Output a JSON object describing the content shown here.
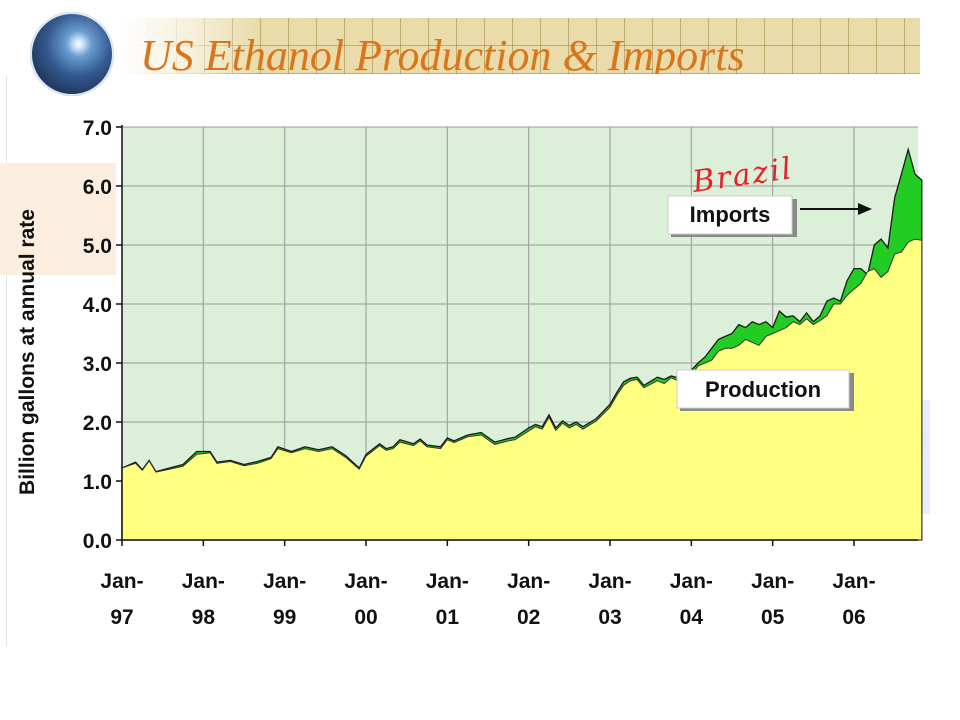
{
  "slide": {
    "title": "US Ethanol Production & Imports"
  },
  "chart_data": {
    "type": "area",
    "ylabel": "Billion gallons at annual rate",
    "ylim": [
      0,
      7
    ],
    "y_ticks": [
      0,
      1,
      2,
      3,
      4,
      5,
      6,
      7
    ],
    "y_tick_labels": [
      "0.0",
      "1.0",
      "2.0",
      "3.0",
      "4.0",
      "5.0",
      "6.0",
      "7.0"
    ],
    "x_start": "Jan-97",
    "x_ticks": [
      {
        "line1": "Jan-",
        "line2": "97",
        "month": 0
      },
      {
        "line1": "Jan-",
        "line2": "98",
        "month": 12
      },
      {
        "line1": "Jan-",
        "line2": "99",
        "month": 24
      },
      {
        "line1": "Jan-",
        "line2": "00",
        "month": 36
      },
      {
        "line1": "Jan-",
        "line2": "01",
        "month": 48
      },
      {
        "line1": "Jan-",
        "line2": "02",
        "month": 60
      },
      {
        "line1": "Jan-",
        "line2": "03",
        "month": 72
      },
      {
        "line1": "Jan-",
        "line2": "04",
        "month": 84
      },
      {
        "line1": "Jan-",
        "line2": "05",
        "month": 96
      },
      {
        "line1": "Jan-",
        "line2": "06",
        "month": 108
      }
    ],
    "grid": true,
    "stacked": true,
    "series": [
      {
        "name": "Production",
        "color": "#ffff80",
        "points": [
          [
            0,
            1.22
          ],
          [
            2,
            1.3
          ],
          [
            3,
            1.18
          ],
          [
            4,
            1.34
          ],
          [
            5,
            1.15
          ],
          [
            7,
            1.2
          ],
          [
            9,
            1.25
          ],
          [
            11,
            1.45
          ],
          [
            13,
            1.48
          ],
          [
            14,
            1.3
          ],
          [
            16,
            1.33
          ],
          [
            18,
            1.26
          ],
          [
            20,
            1.3
          ],
          [
            22,
            1.38
          ],
          [
            23,
            1.55
          ],
          [
            25,
            1.48
          ],
          [
            27,
            1.55
          ],
          [
            29,
            1.5
          ],
          [
            31,
            1.55
          ],
          [
            33,
            1.4
          ],
          [
            35,
            1.2
          ],
          [
            36,
            1.42
          ],
          [
            38,
            1.6
          ],
          [
            39,
            1.52
          ],
          [
            40,
            1.55
          ],
          [
            41,
            1.66
          ],
          [
            43,
            1.6
          ],
          [
            44,
            1.68
          ],
          [
            45,
            1.58
          ],
          [
            47,
            1.55
          ],
          [
            48,
            1.7
          ],
          [
            49,
            1.65
          ],
          [
            51,
            1.75
          ],
          [
            53,
            1.78
          ],
          [
            55,
            1.62
          ],
          [
            57,
            1.68
          ],
          [
            58,
            1.7
          ],
          [
            60,
            1.85
          ],
          [
            61,
            1.92
          ],
          [
            62,
            1.88
          ],
          [
            63,
            2.08
          ],
          [
            64,
            1.86
          ],
          [
            65,
            1.98
          ],
          [
            66,
            1.9
          ],
          [
            67,
            1.96
          ],
          [
            68,
            1.88
          ],
          [
            70,
            2.02
          ],
          [
            72,
            2.25
          ],
          [
            73,
            2.45
          ],
          [
            74,
            2.62
          ],
          [
            75,
            2.7
          ],
          [
            76,
            2.72
          ],
          [
            77,
            2.58
          ],
          [
            79,
            2.7
          ],
          [
            80,
            2.65
          ],
          [
            81,
            2.75
          ],
          [
            82,
            2.7
          ],
          [
            84,
            2.8
          ],
          [
            85,
            2.95
          ],
          [
            86,
            3.0
          ],
          [
            87,
            3.05
          ],
          [
            88,
            3.2
          ],
          [
            89,
            3.25
          ],
          [
            90,
            3.25
          ],
          [
            91,
            3.3
          ],
          [
            92,
            3.4
          ],
          [
            93,
            3.35
          ],
          [
            94,
            3.3
          ],
          [
            95,
            3.45
          ],
          [
            96,
            3.5
          ],
          [
            97,
            3.55
          ],
          [
            98,
            3.6
          ],
          [
            99,
            3.7
          ],
          [
            100,
            3.65
          ],
          [
            101,
            3.75
          ],
          [
            102,
            3.65
          ],
          [
            103,
            3.72
          ],
          [
            104,
            3.8
          ],
          [
            105,
            4.0
          ],
          [
            106,
            4.0
          ],
          [
            107,
            4.15
          ],
          [
            108,
            4.25
          ],
          [
            109,
            4.35
          ],
          [
            110,
            4.55
          ],
          [
            111,
            4.6
          ],
          [
            112,
            4.45
          ],
          [
            113,
            4.55
          ],
          [
            114,
            4.85
          ],
          [
            115,
            4.88
          ],
          [
            116,
            5.05
          ],
          [
            117,
            5.1
          ],
          [
            118,
            5.08
          ]
        ]
      },
      {
        "name": "Imports",
        "color": "#22cc22",
        "points": [
          [
            0,
            1.22
          ],
          [
            2,
            1.32
          ],
          [
            3,
            1.19
          ],
          [
            4,
            1.35
          ],
          [
            5,
            1.16
          ],
          [
            7,
            1.22
          ],
          [
            9,
            1.28
          ],
          [
            11,
            1.5
          ],
          [
            13,
            1.5
          ],
          [
            14,
            1.32
          ],
          [
            16,
            1.35
          ],
          [
            18,
            1.28
          ],
          [
            20,
            1.33
          ],
          [
            22,
            1.4
          ],
          [
            23,
            1.58
          ],
          [
            25,
            1.5
          ],
          [
            27,
            1.58
          ],
          [
            29,
            1.53
          ],
          [
            31,
            1.58
          ],
          [
            33,
            1.43
          ],
          [
            35,
            1.22
          ],
          [
            36,
            1.45
          ],
          [
            38,
            1.63
          ],
          [
            39,
            1.55
          ],
          [
            40,
            1.58
          ],
          [
            41,
            1.7
          ],
          [
            43,
            1.63
          ],
          [
            44,
            1.71
          ],
          [
            45,
            1.61
          ],
          [
            47,
            1.58
          ],
          [
            48,
            1.73
          ],
          [
            49,
            1.68
          ],
          [
            51,
            1.78
          ],
          [
            53,
            1.82
          ],
          [
            55,
            1.66
          ],
          [
            57,
            1.72
          ],
          [
            58,
            1.74
          ],
          [
            60,
            1.9
          ],
          [
            61,
            1.96
          ],
          [
            62,
            1.92
          ],
          [
            63,
            2.12
          ],
          [
            64,
            1.9
          ],
          [
            65,
            2.02
          ],
          [
            66,
            1.94
          ],
          [
            67,
            2.0
          ],
          [
            68,
            1.92
          ],
          [
            70,
            2.06
          ],
          [
            72,
            2.3
          ],
          [
            73,
            2.5
          ],
          [
            74,
            2.68
          ],
          [
            75,
            2.74
          ],
          [
            76,
            2.76
          ],
          [
            77,
            2.62
          ],
          [
            79,
            2.76
          ],
          [
            80,
            2.72
          ],
          [
            81,
            2.78
          ],
          [
            82,
            2.75
          ],
          [
            84,
            2.88
          ],
          [
            85,
            3.0
          ],
          [
            86,
            3.1
          ],
          [
            87,
            3.25
          ],
          [
            88,
            3.4
          ],
          [
            89,
            3.45
          ],
          [
            90,
            3.5
          ],
          [
            91,
            3.65
          ],
          [
            92,
            3.6
          ],
          [
            93,
            3.7
          ],
          [
            94,
            3.65
          ],
          [
            95,
            3.7
          ],
          [
            96,
            3.6
          ],
          [
            97,
            3.88
          ],
          [
            98,
            3.78
          ],
          [
            99,
            3.8
          ],
          [
            100,
            3.7
          ],
          [
            101,
            3.85
          ],
          [
            102,
            3.7
          ],
          [
            103,
            3.8
          ],
          [
            104,
            4.05
          ],
          [
            105,
            4.1
          ],
          [
            106,
            4.05
          ],
          [
            107,
            4.4
          ],
          [
            108,
            4.6
          ],
          [
            109,
            4.6
          ],
          [
            110,
            4.5
          ],
          [
            111,
            5.0
          ],
          [
            112,
            5.1
          ],
          [
            113,
            4.95
          ],
          [
            114,
            5.8
          ],
          [
            115,
            6.2
          ],
          [
            116,
            6.62
          ],
          [
            117,
            6.2
          ],
          [
            118,
            6.1
          ]
        ]
      }
    ],
    "labels": {
      "imports_box": "Imports",
      "production_box": "Production",
      "handwritten_note": "Brazil"
    },
    "colors": {
      "plot_background": "#dcefd8",
      "grid": "#9a9a9a",
      "handwriting": "#e8202a"
    }
  }
}
